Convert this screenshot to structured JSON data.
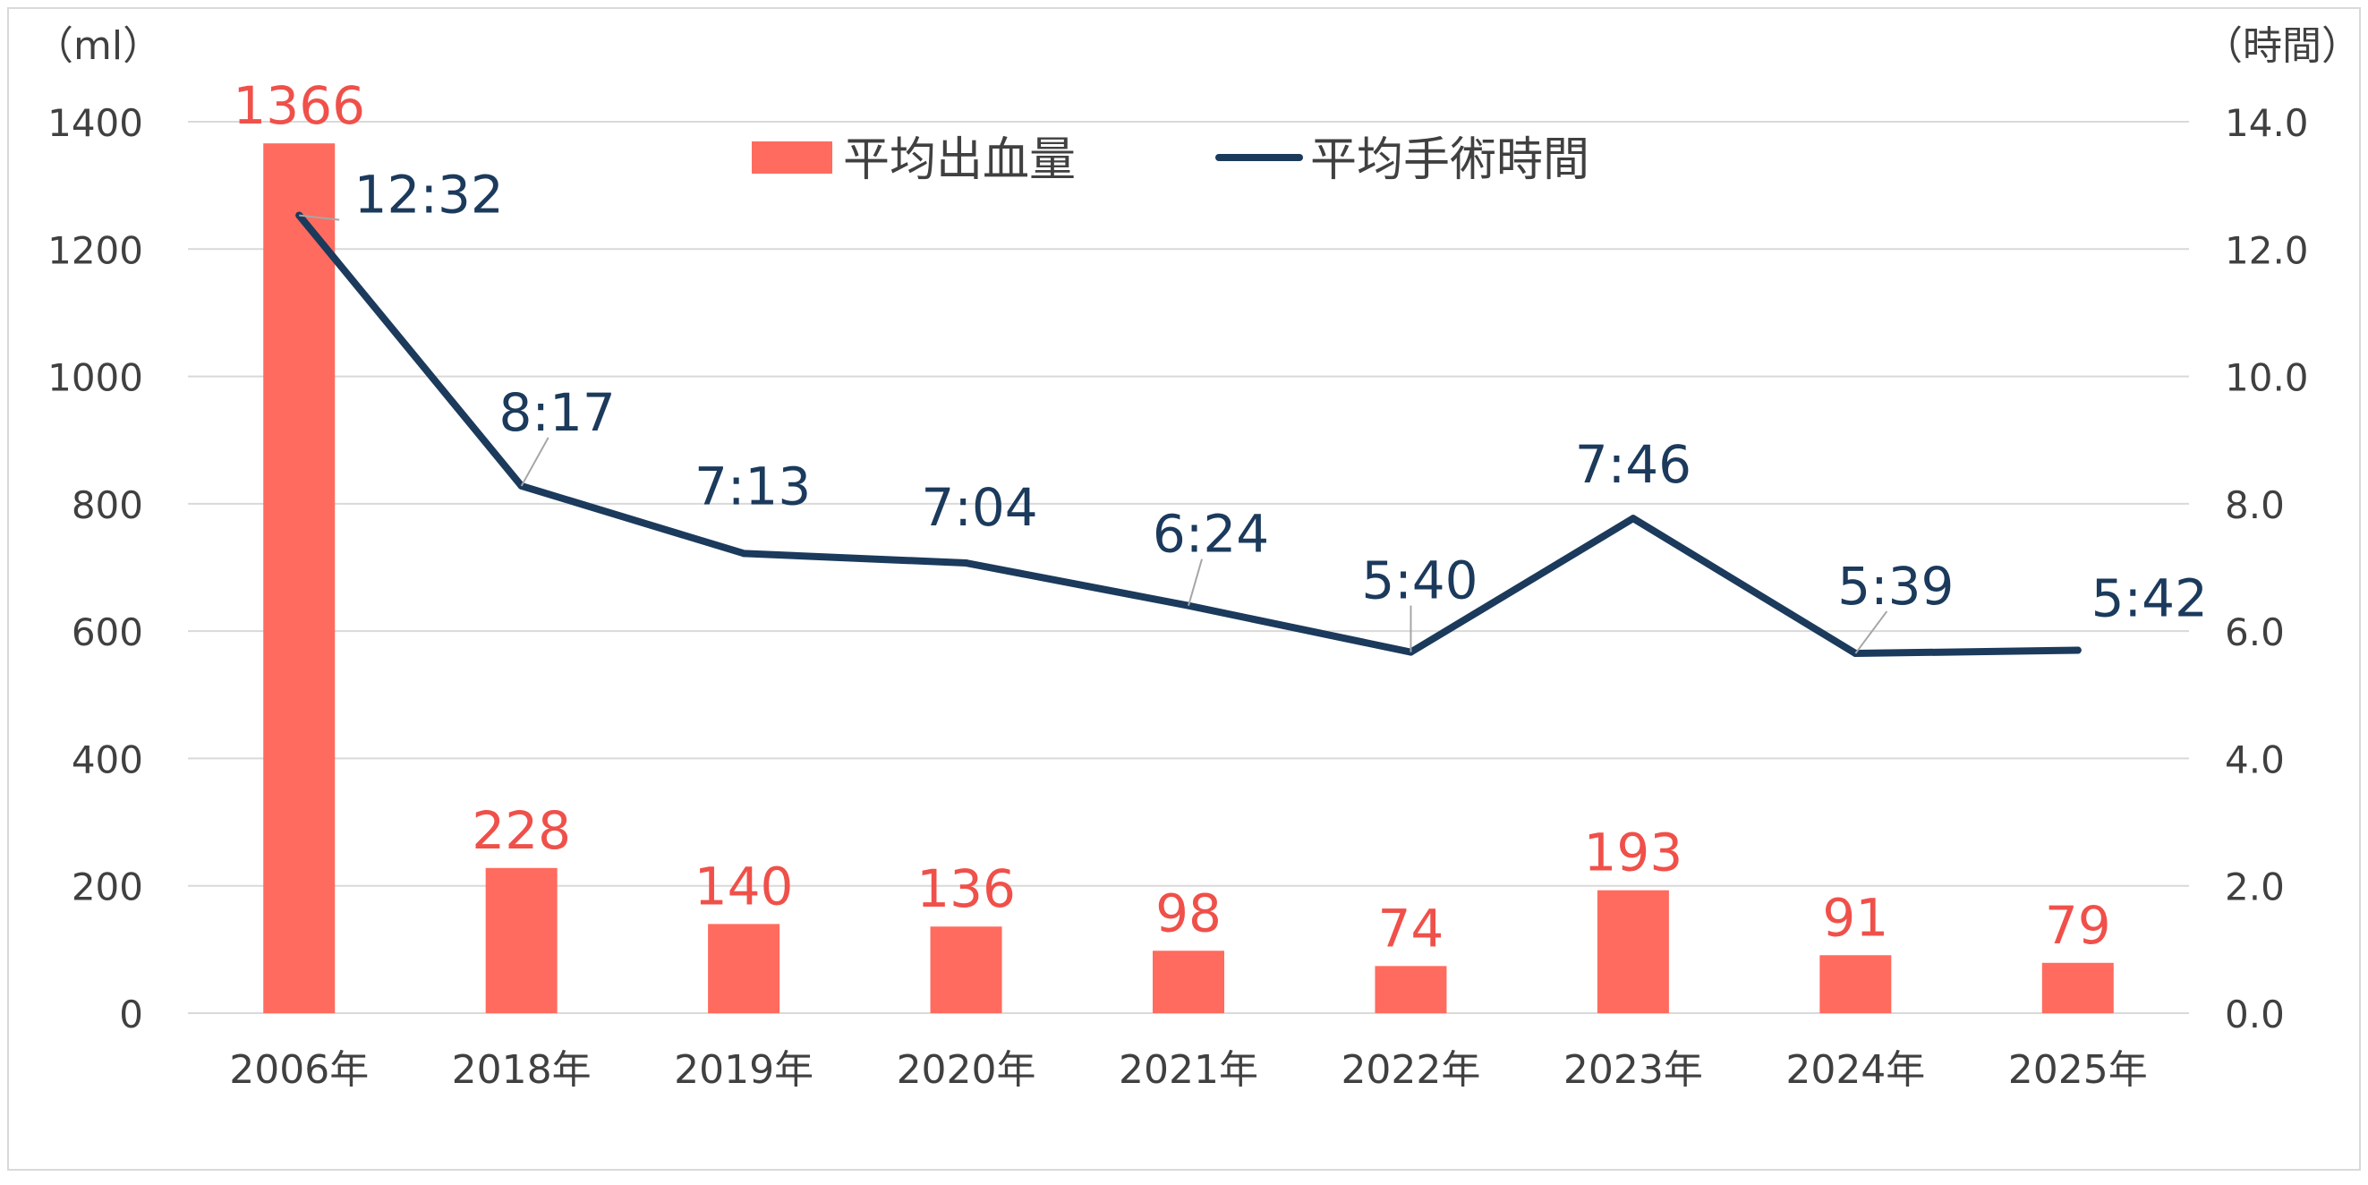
{
  "chart_data": {
    "type": "bar+line",
    "categories": [
      "2006年",
      "2018年",
      "2019年",
      "2020年",
      "2021年",
      "2022年",
      "2023年",
      "2024年",
      "2025年"
    ],
    "series": [
      {
        "name": "平均出血量",
        "type": "bar",
        "axis": "left",
        "values": [
          1366,
          228,
          140,
          136,
          98,
          74,
          193,
          91,
          79
        ],
        "labels": [
          "1366",
          "228",
          "140",
          "136",
          "98",
          "74",
          "193",
          "91",
          "79"
        ]
      },
      {
        "name": "平均手術時間",
        "type": "line",
        "axis": "right",
        "values": [
          12.53,
          8.28,
          7.22,
          7.07,
          6.4,
          5.67,
          7.77,
          5.65,
          5.7
        ],
        "labels": [
          "12:32",
          "8:17",
          "7:13",
          "7:04",
          "6:24",
          "5:40",
          "7:46",
          "5:39",
          "5:42"
        ]
      }
    ],
    "left_axis": {
      "unit": "（ml）",
      "ylim": [
        0,
        1400
      ],
      "ticks": [
        "0",
        "200",
        "400",
        "600",
        "800",
        "1000",
        "1200",
        "1400"
      ]
    },
    "right_axis": {
      "unit": "（時間）",
      "ylim": [
        0,
        14
      ],
      "ticks": [
        "0.0",
        "2.0",
        "4.0",
        "6.0",
        "8.0",
        "10.0",
        "12.0",
        "14.0"
      ]
    },
    "grid": true,
    "legend_position": "top-center",
    "colors": {
      "bar": "#ff6b5e",
      "bar_label": "#f0504a",
      "line": "#1b3a5c",
      "line_label": "#1b3a5c",
      "grid": "#d9d9d9",
      "leader": "#a6a6a6"
    }
  }
}
